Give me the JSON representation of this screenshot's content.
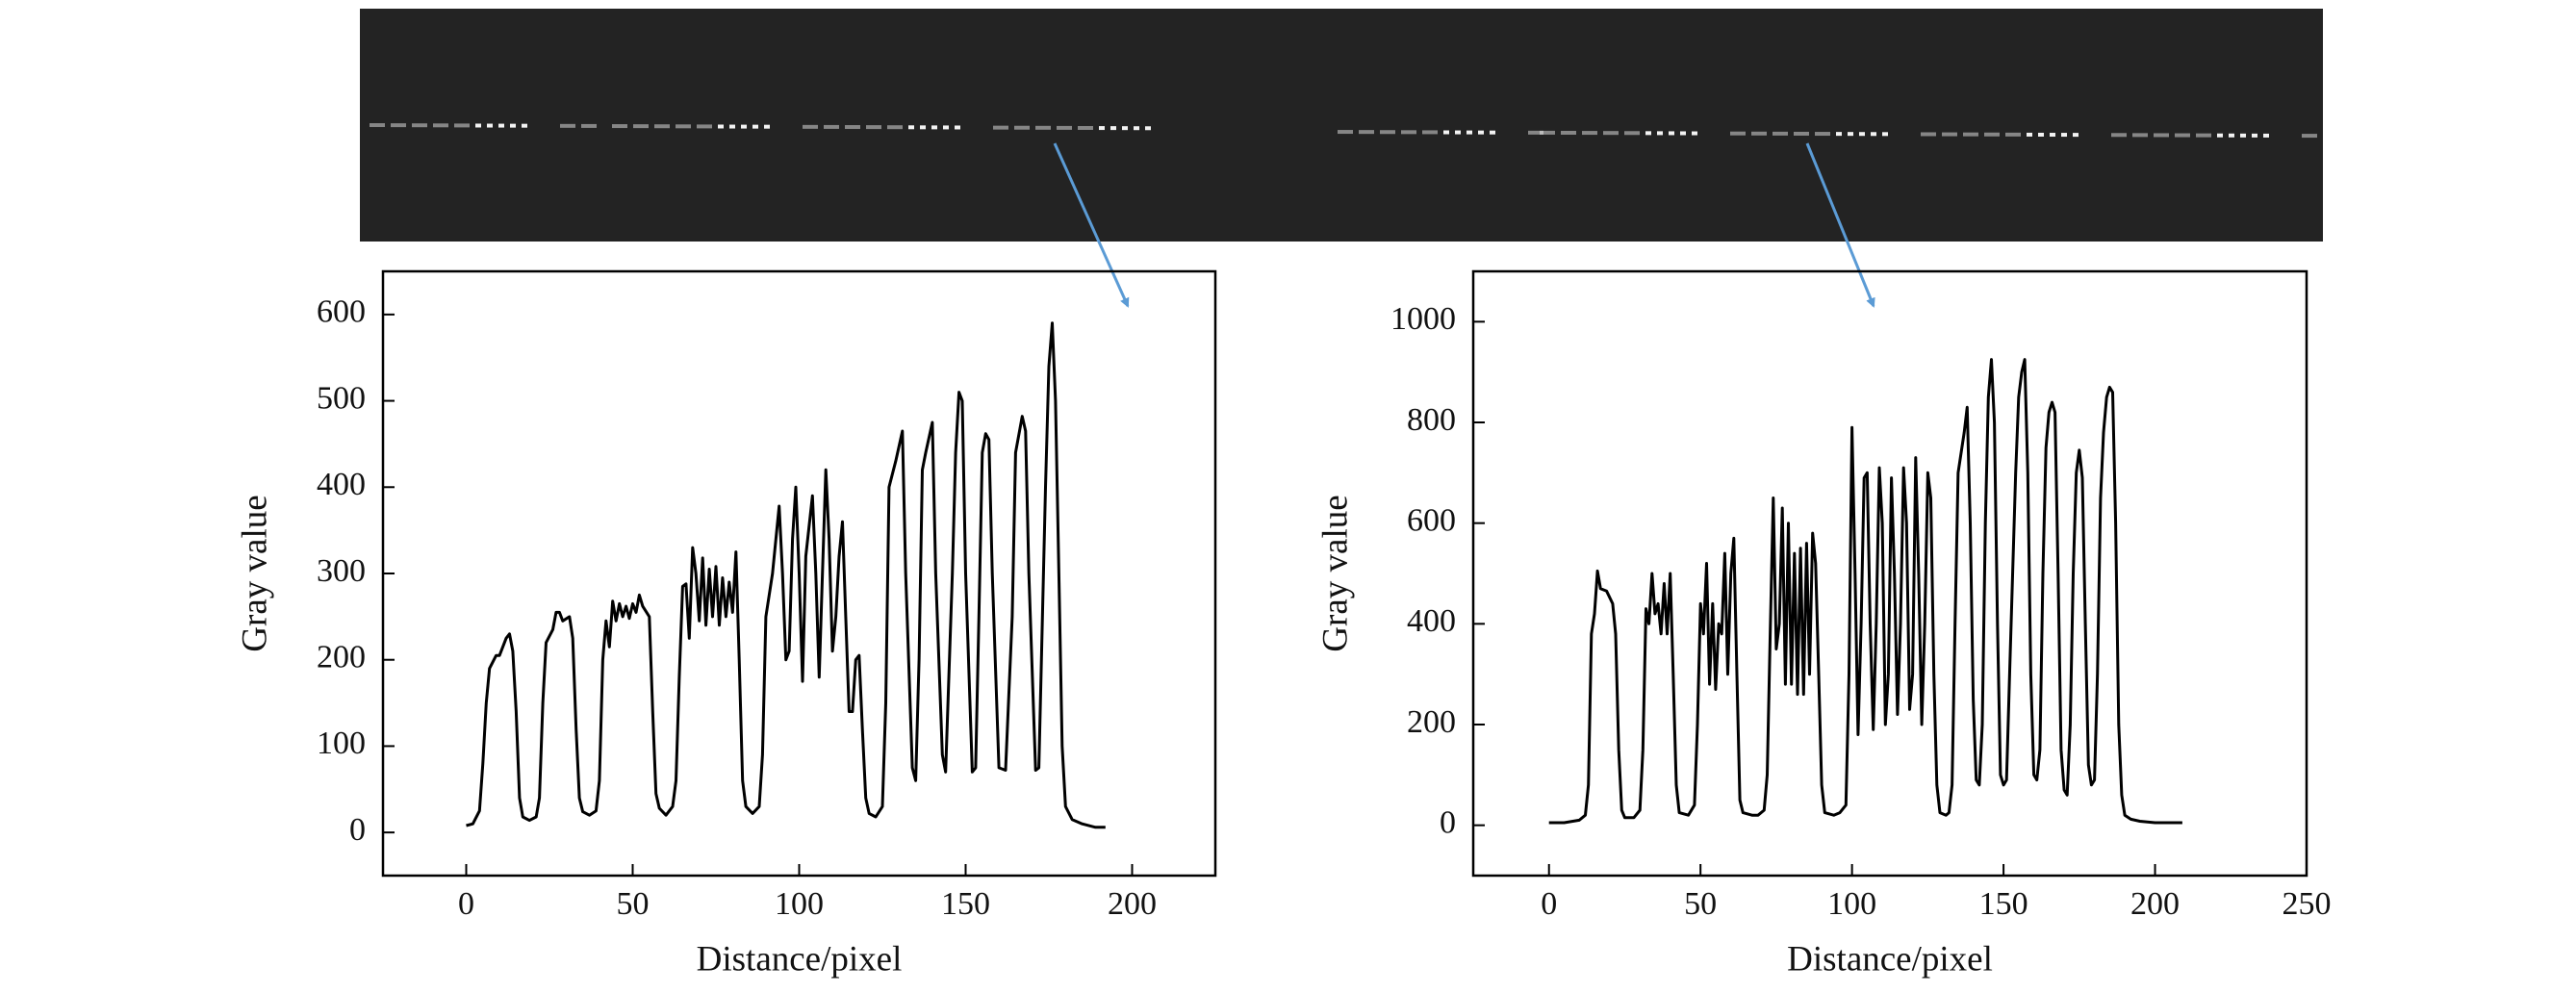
{
  "chart_data": [
    {
      "type": "line",
      "x_label": "Distance/pixel",
      "y_label": "Gray value",
      "xlim": [
        -25,
        225
      ],
      "ylim": [
        -50,
        650
      ],
      "xticks": [
        0,
        50,
        100,
        150,
        200
      ],
      "yticks": [
        0,
        100,
        200,
        300,
        400,
        500,
        600
      ],
      "x": [
        0,
        2,
        4,
        5,
        6,
        7,
        9,
        10,
        12,
        13,
        14,
        15,
        16,
        17,
        19,
        21,
        22,
        23,
        24,
        26,
        27,
        28,
        29,
        31,
        32,
        33,
        34,
        35,
        37,
        39,
        40,
        41,
        42,
        43,
        44,
        45,
        46,
        47,
        48,
        49,
        50,
        51,
        52,
        53,
        55,
        56,
        57,
        58,
        60,
        62,
        63,
        64,
        65,
        66,
        67,
        68,
        69,
        70,
        71,
        72,
        73,
        74,
        75,
        76,
        77,
        78,
        79,
        80,
        81,
        82,
        83,
        84,
        86,
        88,
        89,
        90,
        92,
        94,
        95,
        96,
        97,
        98,
        99,
        100,
        101,
        102,
        104,
        105,
        106,
        107,
        108,
        109,
        110,
        111,
        112,
        113,
        114,
        115,
        116,
        117,
        118,
        119,
        120,
        121,
        123,
        125,
        126,
        127,
        129,
        131,
        132,
        134,
        135,
        136,
        137,
        138,
        140,
        141,
        143,
        144,
        146,
        147,
        148,
        149,
        150,
        152,
        153,
        154,
        155,
        156,
        157,
        158,
        160,
        162,
        164,
        165,
        167,
        168,
        169,
        171,
        172,
        174,
        175,
        176,
        177,
        178,
        179,
        180,
        182,
        185,
        189,
        192
      ],
      "series": [
        {
          "color": "#000000",
          "values": [
            8,
            10,
            25,
            80,
            150,
            190,
            205,
            205,
            225,
            230,
            210,
            140,
            40,
            18,
            14,
            18,
            40,
            150,
            220,
            235,
            255,
            255,
            245,
            250,
            225,
            120,
            40,
            24,
            20,
            25,
            60,
            200,
            245,
            215,
            268,
            245,
            265,
            250,
            262,
            248,
            265,
            255,
            275,
            262,
            250,
            140,
            45,
            28,
            20,
            30,
            60,
            180,
            285,
            288,
            225,
            330,
            300,
            245,
            318,
            240,
            305,
            250,
            308,
            240,
            295,
            250,
            290,
            255,
            325,
            200,
            60,
            30,
            22,
            30,
            90,
            250,
            300,
            378,
            300,
            200,
            210,
            340,
            400,
            300,
            175,
            320,
            390,
            300,
            180,
            300,
            420,
            340,
            210,
            250,
            320,
            360,
            250,
            140,
            140,
            200,
            205,
            120,
            40,
            22,
            18,
            30,
            150,
            400,
            430,
            465,
            300,
            75,
            60,
            200,
            420,
            440,
            475,
            300,
            90,
            70,
            300,
            440,
            510,
            500,
            300,
            70,
            75,
            250,
            440,
            462,
            455,
            300,
            75,
            72,
            250,
            440,
            482,
            465,
            300,
            72,
            75,
            400,
            540,
            590,
            500,
            300,
            100,
            30,
            15,
            10,
            6,
            6
          ]
        }
      ]
    },
    {
      "type": "line",
      "x_label": "Distance/pixel",
      "y_label": "Gray value",
      "xlim": [
        -25,
        250
      ],
      "ylim": [
        -100,
        1100
      ],
      "xticks": [
        0,
        50,
        100,
        150,
        200,
        250
      ],
      "yticks": [
        0,
        200,
        400,
        600,
        800,
        1000
      ],
      "x": [
        0,
        5,
        10,
        12,
        13,
        14,
        15,
        16,
        17,
        19,
        21,
        22,
        23,
        24,
        25,
        28,
        30,
        31,
        32,
        33,
        34,
        35,
        36,
        37,
        38,
        39,
        40,
        41,
        42,
        43,
        46,
        48,
        49,
        50,
        51,
        52,
        53,
        54,
        55,
        56,
        57,
        58,
        59,
        60,
        61,
        62,
        63,
        64,
        67,
        69,
        71,
        72,
        73,
        74,
        75,
        76,
        77,
        78,
        79,
        80,
        81,
        82,
        83,
        84,
        85,
        86,
        87,
        88,
        89,
        90,
        91,
        94,
        96,
        98,
        99,
        100,
        101,
        102,
        103,
        104,
        105,
        106,
        107,
        108,
        109,
        110,
        111,
        112,
        113,
        114,
        115,
        116,
        117,
        118,
        119,
        120,
        121,
        122,
        123,
        124,
        125,
        126,
        127,
        128,
        129,
        131,
        132,
        133,
        134,
        135,
        137,
        138,
        139,
        140,
        141,
        142,
        143,
        144,
        145,
        146,
        147,
        148,
        149,
        150,
        151,
        152,
        154,
        155,
        156,
        157,
        158,
        159,
        160,
        161,
        162,
        163,
        164,
        165,
        166,
        167,
        168,
        169,
        170,
        171,
        172,
        173,
        174,
        175,
        176,
        177,
        178,
        179,
        180,
        181,
        182,
        183,
        184,
        185,
        186,
        187,
        188,
        189,
        190,
        192,
        195,
        200,
        205,
        209
      ],
      "series": [
        {
          "color": "#000000",
          "values": [
            5,
            5,
            10,
            20,
            80,
            380,
            420,
            505,
            470,
            465,
            440,
            380,
            150,
            30,
            15,
            15,
            30,
            150,
            430,
            400,
            500,
            420,
            440,
            380,
            480,
            380,
            500,
            300,
            80,
            25,
            20,
            40,
            200,
            440,
            380,
            520,
            280,
            440,
            270,
            400,
            380,
            540,
            300,
            500,
            570,
            300,
            50,
            25,
            20,
            20,
            30,
            100,
            380,
            650,
            350,
            400,
            630,
            280,
            600,
            280,
            540,
            260,
            550,
            260,
            560,
            300,
            580,
            520,
            300,
            80,
            25,
            20,
            25,
            40,
            300,
            790,
            500,
            180,
            400,
            690,
            700,
            400,
            190,
            400,
            710,
            600,
            200,
            300,
            690,
            500,
            220,
            400,
            710,
            600,
            230,
            300,
            730,
            500,
            200,
            400,
            700,
            650,
            300,
            80,
            25,
            20,
            25,
            80,
            400,
            700,
            780,
            830,
            600,
            250,
            90,
            80,
            200,
            600,
            850,
            925,
            800,
            400,
            100,
            80,
            90,
            300,
            700,
            850,
            900,
            925,
            700,
            300,
            100,
            90,
            150,
            500,
            750,
            820,
            840,
            820,
            500,
            150,
            70,
            60,
            200,
            500,
            700,
            745,
            690,
            400,
            120,
            80,
            90,
            300,
            650,
            780,
            850,
            870,
            860,
            600,
            200,
            60,
            20,
            12,
            8,
            5,
            5,
            5
          ]
        }
      ]
    }
  ]
}
